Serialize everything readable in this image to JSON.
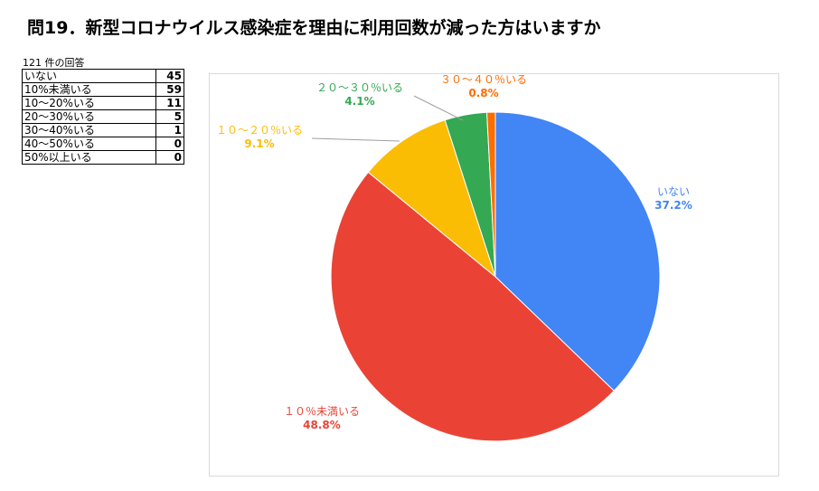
{
  "title": "問19．新型コロナウイルス感染症を理由に利用回数が減った方はいますか",
  "response_count_label": "121 件の回答",
  "table_rows": [
    {
      "label": "いない",
      "count": "45"
    },
    {
      "label": "10%未満いる",
      "count": "59"
    },
    {
      "label": "10〜20%いる",
      "count": "11"
    },
    {
      "label": "20〜30%いる",
      "count": "5"
    },
    {
      "label": "30〜40%いる",
      "count": "1"
    },
    {
      "label": "40〜50%いる",
      "count": "0"
    },
    {
      "label": "50%以上いる",
      "count": "0"
    }
  ],
  "chart_data": {
    "type": "pie",
    "title": "",
    "slices": [
      {
        "label": "いない",
        "percent_label": "37.2%",
        "value": 45,
        "color": "#4285f4"
      },
      {
        "label": "１０％未満いる",
        "percent_label": "48.8%",
        "value": 59,
        "color": "#ea4335"
      },
      {
        "label": "１０〜２０％いる",
        "percent_label": "9.1%",
        "value": 11,
        "color": "#fbbc04"
      },
      {
        "label": "２０〜３０％いる",
        "percent_label": "4.1%",
        "value": 5,
        "color": "#34a853"
      },
      {
        "label": "３０〜４０％いる",
        "percent_label": "0.8%",
        "value": 1,
        "color": "#ff6d01"
      }
    ],
    "start": "12 o'clock",
    "direction": "clockwise",
    "legend": "none"
  }
}
